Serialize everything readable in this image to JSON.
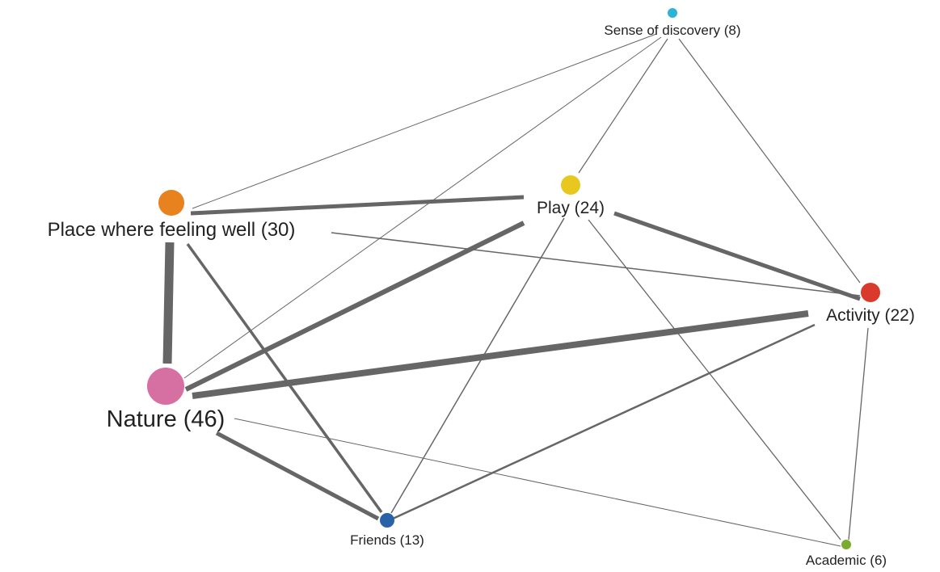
{
  "colors": {
    "edge": "#666666",
    "label": "#222222"
  },
  "nodes": [
    {
      "id": "discovery",
      "label": "Sense of discovery (8)",
      "color": "#2bb4d4"
    },
    {
      "id": "play",
      "label": "Play (24)",
      "color": "#e8c81e"
    },
    {
      "id": "place",
      "label": "Place where feeling well (30)",
      "color": "#e8821e"
    },
    {
      "id": "activity",
      "label": "Activity (22)",
      "color": "#d93a2b"
    },
    {
      "id": "nature",
      "label": "Nature (46)",
      "color": "#d66fa2"
    },
    {
      "id": "friends",
      "label": "Friends (13)",
      "color": "#2a62a8"
    },
    {
      "id": "academic",
      "label": "Academic (6)",
      "color": "#7bab2f"
    }
  ],
  "edges": [
    {
      "source": "discovery",
      "target": "place"
    },
    {
      "source": "discovery",
      "target": "nature"
    },
    {
      "source": "discovery",
      "target": "play"
    },
    {
      "source": "discovery",
      "target": "activity"
    },
    {
      "source": "place",
      "target": "play"
    },
    {
      "source": "place",
      "target": "activity"
    },
    {
      "source": "place",
      "target": "nature"
    },
    {
      "source": "place",
      "target": "friends"
    },
    {
      "source": "play",
      "target": "nature"
    },
    {
      "source": "play",
      "target": "activity"
    },
    {
      "source": "play",
      "target": "friends"
    },
    {
      "source": "play",
      "target": "academic"
    },
    {
      "source": "activity",
      "target": "nature"
    },
    {
      "source": "activity",
      "target": "friends"
    },
    {
      "source": "activity",
      "target": "academic"
    },
    {
      "source": "nature",
      "target": "friends"
    },
    {
      "source": "nature",
      "target": "academic"
    }
  ]
}
